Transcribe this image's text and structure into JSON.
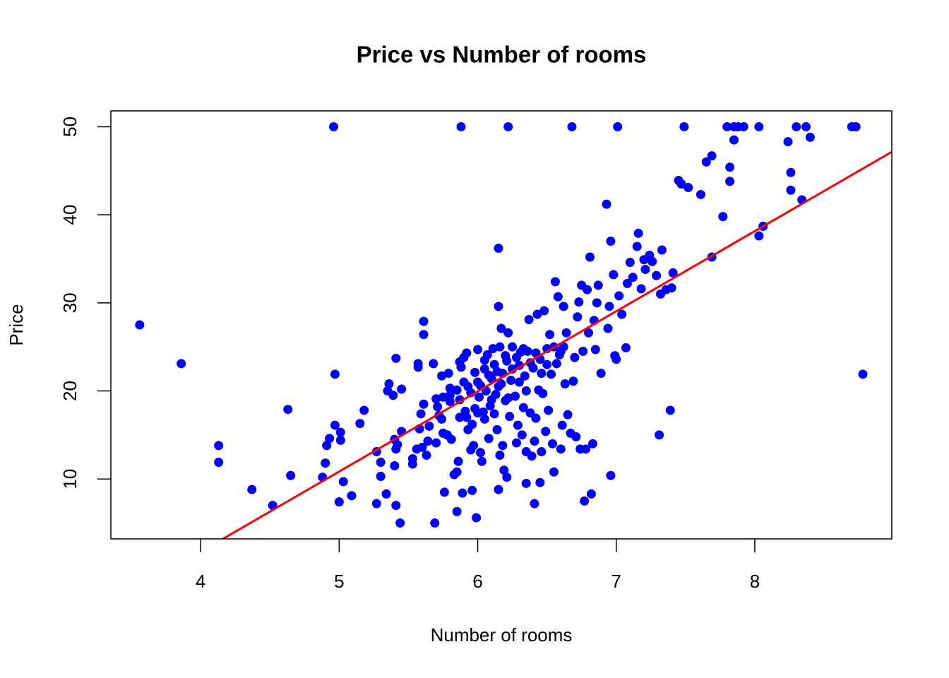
{
  "chart_data": {
    "type": "scatter",
    "title": "Price vs Number of rooms",
    "x_label": "Number of rooms",
    "y_label": "Price",
    "color": "blue",
    "x": [
      3.56,
      3.86,
      4.13,
      4.13,
      4.37,
      4.52,
      4.63,
      4.65,
      4.88,
      4.9,
      4.91,
      4.93,
      4.97,
      4.97,
      4.96,
      5.0,
      5.01,
      5.01,
      5.03,
      5.09,
      5.15,
      5.18,
      5.27,
      5.27,
      5.3,
      5.3,
      5.34,
      5.35,
      5.36,
      5.39,
      5.4,
      5.4,
      5.41,
      5.41,
      5.41,
      5.42,
      5.44,
      5.45,
      5.45,
      5.53,
      5.53,
      5.56,
      5.57,
      5.57,
      5.58,
      5.59,
      5.6,
      5.61,
      5.61,
      5.61,
      5.63,
      5.64,
      5.65,
      5.68,
      5.69,
      5.7,
      5.7,
      5.71,
      5.72,
      5.74,
      5.74,
      5.75,
      5.76,
      5.78,
      5.79,
      5.8,
      5.8,
      5.81,
      5.83,
      5.85,
      5.85,
      5.86,
      5.87,
      5.87,
      5.87,
      5.88,
      5.89,
      5.9,
      5.91,
      5.92,
      5.93,
      5.93,
      5.95,
      5.96,
      5.96,
      5.97,
      5.98,
      5.99,
      6.0,
      6.0,
      6.01,
      6.02,
      6.03,
      6.04,
      6.05,
      6.06,
      6.07,
      6.08,
      6.09,
      6.1,
      6.11,
      6.12,
      6.13,
      6.14,
      6.14,
      6.15,
      6.15,
      6.15,
      6.16,
      6.16,
      6.17,
      6.17,
      6.18,
      6.19,
      6.2,
      6.21,
      6.21,
      6.22,
      6.22,
      6.23,
      6.24,
      6.25,
      6.27,
      6.28,
      6.29,
      6.3,
      6.31,
      6.32,
      6.33,
      6.34,
      6.35,
      6.35,
      6.36,
      6.37,
      6.38,
      6.39,
      6.4,
      6.41,
      6.41,
      6.42,
      6.43,
      6.44,
      6.45,
      6.45,
      6.46,
      6.47,
      6.48,
      6.49,
      6.5,
      6.51,
      6.52,
      6.53,
      6.54,
      6.55,
      6.56,
      6.57,
      6.58,
      6.59,
      6.6,
      6.61,
      6.62,
      6.62,
      6.63,
      6.64,
      6.65,
      6.67,
      6.68,
      6.69,
      6.7,
      6.71,
      6.72,
      6.73,
      6.74,
      6.75,
      6.76,
      6.77,
      6.78,
      6.79,
      6.8,
      6.81,
      6.82,
      6.83,
      6.84,
      6.85,
      6.86,
      6.87,
      6.89,
      6.93,
      6.94,
      6.95,
      6.96,
      6.96,
      6.98,
      6.99,
      7.0,
      7.01,
      7.02,
      7.04,
      7.07,
      7.08,
      7.1,
      7.12,
      7.15,
      7.16,
      7.18,
      7.2,
      7.21,
      7.24,
      7.26,
      7.29,
      7.31,
      7.32,
      7.33,
      7.36,
      7.39,
      7.4,
      7.41,
      7.45,
      7.47,
      7.49,
      7.52,
      7.61,
      7.65,
      7.69,
      7.69,
      7.77,
      7.8,
      7.82,
      7.82,
      7.85,
      7.85,
      7.88,
      7.92,
      8.03,
      8.03,
      8.06,
      8.24,
      8.26,
      8.26,
      8.3,
      8.34,
      8.37,
      8.4,
      8.7,
      8.73,
      8.78,
      5.75,
      5.8,
      5.85,
      5.9,
      5.95,
      5.98,
      6.02,
      6.05,
      6.08,
      6.12,
      6.18,
      6.2,
      6.25,
      6.28,
      6.3,
      6.33,
      6.38,
      6.42,
      6.46,
      6.5,
      6.55,
      6.6,
      6.0,
      6.1,
      6.15,
      6.22,
      6.35,
      5.88,
      5.92,
      6.05
    ],
    "y": [
      27.5,
      23.1,
      13.8,
      11.9,
      8.8,
      7.0,
      17.9,
      10.4,
      10.2,
      11.8,
      13.8,
      14.6,
      16.1,
      21.9,
      50,
      7.4,
      15.3,
      14.4,
      9.7,
      8.1,
      16.3,
      17.8,
      13.1,
      7.2,
      11.9,
      10.3,
      8.3,
      20.0,
      20.8,
      19.5,
      14.5,
      11.5,
      7.0,
      13.4,
      23.7,
      13.9,
      5.0,
      20.2,
      15.4,
      12.3,
      11.7,
      13.4,
      23.1,
      22.7,
      15.7,
      17.4,
      13.6,
      18.5,
      26.4,
      27.9,
      12.7,
      14.3,
      16.0,
      23.1,
      5.0,
      19.1,
      14.1,
      18.2,
      17.2,
      21.7,
      16.8,
      15.2,
      8.5,
      15.0,
      22.0,
      19.5,
      20.3,
      14.5,
      10.5,
      10.8,
      6.3,
      12.0,
      17.0,
      19.0,
      23.3,
      50,
      8.4,
      23.8,
      17.7,
      24.3,
      20.5,
      15.6,
      13.3,
      8.7,
      16.2,
      13.8,
      18.0,
      5.6,
      24.7,
      21.0,
      19.3,
      13.0,
      12.0,
      17.6,
      22.5,
      20.0,
      24.1,
      14.6,
      18.3,
      21.4,
      24.8,
      17.4,
      19.6,
      22.2,
      15.6,
      8.8,
      36.2,
      29.6,
      12.7,
      25.0,
      27.1,
      20.8,
      13.8,
      11.0,
      18.9,
      23.4,
      10.2,
      50,
      26.6,
      17.1,
      21.2,
      25.0,
      19.4,
      14.1,
      16.1,
      22.9,
      24.4,
      15.0,
      18.1,
      21.7,
      13.1,
      9.5,
      24.5,
      28.1,
      17.5,
      12.6,
      22.6,
      7.2,
      14.3,
      16.9,
      28.7,
      20.1,
      23.6,
      9.6,
      13.1,
      19.7,
      29.1,
      15.4,
      24.8,
      17.8,
      26.4,
      21.9,
      14.0,
      10.8,
      32.4,
      23.1,
      30.7,
      24.1,
      13.4,
      16.1,
      25.0,
      29.6,
      20.8,
      26.6,
      17.3,
      15.2,
      50,
      21.1,
      23.8,
      14.8,
      28.4,
      30.1,
      13.4,
      32.0,
      24.5,
      7.5,
      13.4,
      31.5,
      26.6,
      35.2,
      8.3,
      14.0,
      28.0,
      24.7,
      30.0,
      32.0,
      22.0,
      41.2,
      27.1,
      29.6,
      10.4,
      37.0,
      33.2,
      24.0,
      23.6,
      50,
      30.8,
      28.7,
      24.9,
      32.2,
      34.6,
      32.9,
      36.4,
      37.9,
      31.6,
      34.9,
      33.8,
      35.4,
      34.7,
      33.1,
      15.0,
      31.0,
      36.0,
      31.5,
      17.8,
      31.7,
      33.4,
      43.9,
      43.5,
      50,
      43.1,
      42.3,
      46.0,
      46.7,
      35.2,
      39.8,
      50,
      45.4,
      43.8,
      50,
      48.5,
      50,
      50,
      50,
      37.6,
      38.7,
      48.3,
      44.8,
      42.8,
      50,
      41.7,
      50,
      48.8,
      50,
      50,
      21.9,
      19.3,
      18.8,
      20.1,
      21.0,
      19.8,
      22.1,
      20.6,
      23.5,
      21.8,
      23.0,
      22.0,
      24.0,
      22.5,
      23.8,
      21.0,
      24.8,
      23.2,
      24.3,
      22.0,
      23.0,
      25.0,
      24.5,
      17.5,
      19.0,
      20.5,
      19.2,
      20.0,
      22.7,
      17.0,
      16.8
    ],
    "fit": {
      "intercept": -34.67,
      "slope": 9.102,
      "color": "red"
    },
    "xlim": [
      3.352,
      8.989
    ],
    "xticks": [
      4,
      5,
      6,
      7,
      8
    ],
    "ylim": [
      3.2,
      51.8
    ],
    "yticks": [
      10,
      20,
      30,
      40,
      50
    ]
  }
}
